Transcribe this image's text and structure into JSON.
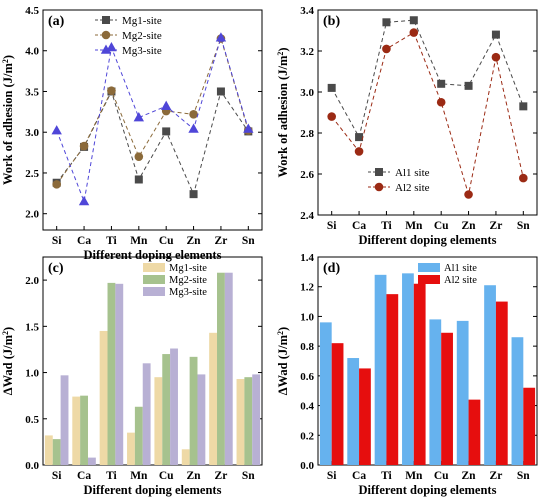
{
  "chart_data": [
    {
      "panel_label": "(a)",
      "type": "line",
      "xlabel": "Different doping elements",
      "ylabel": "Work of adhesion (J/m",
      "ylabel_sup": "2",
      "ylabel_close": ")",
      "categories": [
        "Si",
        "Ca",
        "Ti",
        "Mn",
        "Cu",
        "Zn",
        "Zr",
        "Sn"
      ],
      "ylim": [
        1.8,
        4.5
      ],
      "yticks": [
        "2.0",
        "2.5",
        "3.0",
        "3.5",
        "4.0",
        "4.5"
      ],
      "legend_position": "top-left",
      "series": [
        {
          "name": "Mg1-site",
          "marker": "square",
          "color": "#4a4a4a",
          "values": [
            2.38,
            2.82,
            3.5,
            2.42,
            3.01,
            2.24,
            3.5,
            3.01
          ]
        },
        {
          "name": "Mg2-site",
          "marker": "circle",
          "color": "#8b6a3a",
          "values": [
            2.36,
            2.83,
            3.51,
            2.7,
            3.26,
            3.22,
            4.15,
            3.02
          ]
        },
        {
          "name": "Mg3-site",
          "marker": "triangle",
          "color": "#4f46d8",
          "values": [
            3.02,
            2.15,
            4.04,
            3.18,
            3.32,
            3.04,
            4.16,
            3.04
          ]
        }
      ]
    },
    {
      "panel_label": "(b)",
      "type": "line",
      "xlabel": "Different doping elements",
      "ylabel": "Work of adhesion (J/m",
      "ylabel_sup": "2",
      "ylabel_close": ")",
      "categories": [
        "Si",
        "Ca",
        "Ti",
        "Mn",
        "Cu",
        "Zn",
        "Zr",
        "Sn"
      ],
      "ylim": [
        2.4,
        3.4
      ],
      "yticks": [
        "2.4",
        "2.6",
        "2.8",
        "3.0",
        "3.2",
        "3.4"
      ],
      "legend_position": "bottom-center",
      "series": [
        {
          "name": "Al1 site",
          "marker": "square",
          "color": "#4a4a4a",
          "values": [
            3.02,
            2.78,
            3.34,
            3.35,
            3.04,
            3.03,
            3.28,
            2.93
          ]
        },
        {
          "name": "Al2 site",
          "marker": "circle",
          "color": "#9b2a14",
          "values": [
            2.88,
            2.71,
            3.21,
            3.29,
            2.95,
            2.5,
            3.17,
            2.58
          ]
        }
      ]
    },
    {
      "panel_label": "(c)",
      "type": "bar",
      "xlabel": "Different doping elements",
      "ylabel": "ΔWad (J/m",
      "ylabel_sup": "2",
      "ylabel_close": ")",
      "categories": [
        "Si",
        "Ca",
        "Ti",
        "Mn",
        "Cu",
        "Zn",
        "Zr",
        "Sn"
      ],
      "ylim": [
        0,
        2.25
      ],
      "yticks": [
        "0.0",
        "0.5",
        "1.0",
        "1.5",
        "2.0"
      ],
      "legend_position": "top-center",
      "series": [
        {
          "name": "Mg1-site",
          "color": "#eed9a6",
          "values": [
            0.32,
            0.74,
            1.45,
            0.35,
            0.95,
            0.17,
            1.43,
            0.93
          ]
        },
        {
          "name": "Mg2-site",
          "color": "#a6c28e",
          "values": [
            0.28,
            0.75,
            1.97,
            0.63,
            1.2,
            1.17,
            2.08,
            0.95
          ]
        },
        {
          "name": "Mg3-site",
          "color": "#b8b0d4",
          "values": [
            0.97,
            0.08,
            1.96,
            1.1,
            1.26,
            0.98,
            2.08,
            0.98
          ]
        }
      ]
    },
    {
      "panel_label": "(d)",
      "type": "bar",
      "xlabel": "Different doping elements",
      "ylabel": "ΔWad (J/m",
      "ylabel_sup": "2",
      "ylabel_close": ")",
      "categories": [
        "Si",
        "Ca",
        "Ti",
        "Mn",
        "Cu",
        "Zn",
        "Zr",
        "Sn"
      ],
      "ylim": [
        0,
        1.4
      ],
      "yticks": [
        "0.0",
        "0.2",
        "0.4",
        "0.6",
        "0.8",
        "1.0",
        "1.2",
        "1.4"
      ],
      "legend_position": "top-center",
      "series": [
        {
          "name": "Al1 site",
          "color": "#66b2ee",
          "values": [
            0.96,
            0.72,
            1.28,
            1.29,
            0.98,
            0.97,
            1.21,
            0.86
          ]
        },
        {
          "name": "Al2 site",
          "color": "#e60e0e",
          "values": [
            0.82,
            0.65,
            1.15,
            1.22,
            0.89,
            0.44,
            1.1,
            0.52
          ]
        }
      ]
    }
  ]
}
